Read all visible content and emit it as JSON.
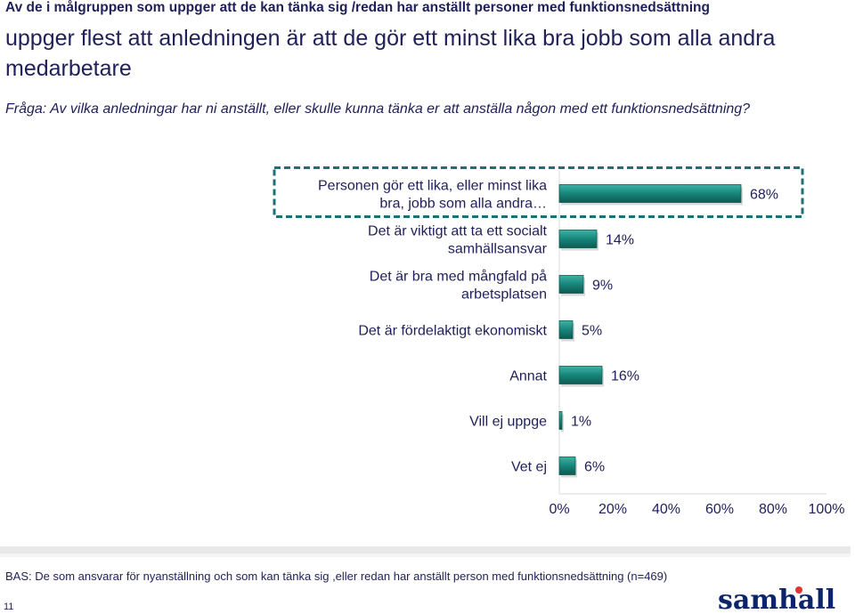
{
  "header": {
    "kicker": "Av de i målgruppen som uppger att de kan tänka sig /redan har anställt personer med funktionsnedsättning",
    "headline": "uppger flest att anledningen är att de gör ett minst lika bra jobb som alla andra medarbetare",
    "question": "Fråga: Av vilka anledningar har ni anställt, eller skulle kunna tänka er att anställa någon med ett funktionsnedsättning?"
  },
  "chart_data": {
    "type": "bar",
    "orientation": "horizontal",
    "categories": [
      [
        "Personen gör ett lika, eller minst lika",
        "bra, jobb som alla andra…"
      ],
      [
        "Det är viktigt att ta ett socialt",
        "samhällsansvar"
      ],
      [
        "Det är bra med mångfald på",
        "arbetsplatsen"
      ],
      [
        "Det är fördelaktigt ekonomiskt"
      ],
      [
        "Annat"
      ],
      [
        "Vill ej uppge"
      ],
      [
        "Vet ej"
      ]
    ],
    "values": [
      68,
      14,
      9,
      5,
      16,
      1,
      6
    ],
    "value_labels": [
      "68%",
      "14%",
      "9%",
      "5%",
      "16%",
      "1%",
      "6%"
    ],
    "xlim": [
      0,
      100
    ],
    "xticks": [
      "0%",
      "20%",
      "40%",
      "60%",
      "80%",
      "100%"
    ],
    "highlighted_category_index": 0,
    "grid": false,
    "colors": {
      "bar": "#17857a",
      "bar_dark": "#0e5a52",
      "highlight_border": "#1f6f78",
      "text": "#1f1f5a"
    }
  },
  "footer": {
    "base": "BAS: De som ansvarar för nyanställning och som kan tänka sig ,eller redan har anställt person med funktionsnedsättning (n=469)",
    "page_number": "11",
    "logo_text": "samhall"
  }
}
